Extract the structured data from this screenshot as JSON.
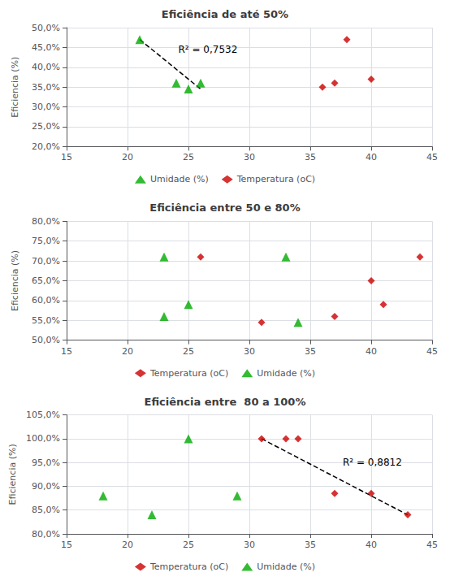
{
  "chart_data": [
    {
      "type": "scatter",
      "title": "Eficiência de até 50%",
      "ylabel": "Eficiencia (%)",
      "xlim": [
        15,
        45
      ],
      "ylim": [
        0.2,
        0.5
      ],
      "xticks": [
        15,
        20,
        25,
        30,
        35,
        40,
        45
      ],
      "yticks": [
        {
          "value": 0.2,
          "label": "20,0%"
        },
        {
          "value": 0.25,
          "label": "25,0%"
        },
        {
          "value": 0.3,
          "label": "30,0%"
        },
        {
          "value": 0.35,
          "label": "35,0%"
        },
        {
          "value": 0.4,
          "label": "40,0%"
        },
        {
          "value": 0.45,
          "label": "45,0%"
        },
        {
          "value": 0.5,
          "label": "50,0%"
        }
      ],
      "grid": true,
      "legend": "bottom",
      "series": [
        {
          "name": "Umidade (%)",
          "color": "#00AA00",
          "marker": "triangle",
          "x": [
            21,
            24,
            25,
            26
          ],
          "values": [
            0.47,
            0.36,
            0.345,
            0.36
          ]
        },
        {
          "name": "Temperatura (oC)",
          "color": "#CC0000",
          "marker": "diamond",
          "x": [
            36,
            37,
            38,
            40
          ],
          "values": [
            0.35,
            0.36,
            0.47,
            0.37
          ]
        },
        {
          "type": "line",
          "line_style": "dashed",
          "color": "#000000",
          "x": [
            21,
            26
          ],
          "values": [
            0.47,
            0.345
          ]
        }
      ],
      "annotation": "R² = 0,7532"
    },
    {
      "type": "scatter",
      "title": "Eficiência entre 50 e 80%",
      "ylabel": "Eficiencia (%)",
      "xlim": [
        15,
        45
      ],
      "ylim": [
        0.5,
        0.8
      ],
      "xticks": [
        15,
        20,
        25,
        30,
        35,
        40,
        45
      ],
      "yticks": [
        {
          "value": 0.5,
          "label": "50,0%"
        },
        {
          "value": 0.55,
          "label": "55,0%"
        },
        {
          "value": 0.6,
          "label": "60,0%"
        },
        {
          "value": 0.65,
          "label": "65,0%"
        },
        {
          "value": 0.7,
          "label": "70,0%"
        },
        {
          "value": 0.75,
          "label": "75,0%"
        },
        {
          "value": 0.8,
          "label": "80,0%"
        }
      ],
      "grid": true,
      "legend": "bottom",
      "series": [
        {
          "name": "Temperatura (oC)",
          "color": "#CC0000",
          "marker": "diamond",
          "x": [
            26,
            31,
            37,
            40,
            41,
            44
          ],
          "values": [
            0.71,
            0.545,
            0.56,
            0.65,
            0.59,
            0.71
          ]
        },
        {
          "name": "Umidade (%)",
          "color": "#00AA00",
          "marker": "triangle",
          "x": [
            23,
            23,
            25,
            33,
            34
          ],
          "values": [
            0.71,
            0.56,
            0.59,
            0.71,
            0.545
          ]
        }
      ]
    },
    {
      "type": "scatter",
      "title": "Eficiência entre  80 a 100%",
      "ylabel": "Eficiencia (%)",
      "xlim": [
        15,
        45
      ],
      "ylim": [
        0.8,
        1.05
      ],
      "xticks": [
        15,
        20,
        25,
        30,
        35,
        40,
        45
      ],
      "yticks": [
        {
          "value": 0.8,
          "label": "80,0%"
        },
        {
          "value": 0.85,
          "label": "85,0%"
        },
        {
          "value": 0.9,
          "label": "90,0%"
        },
        {
          "value": 0.95,
          "label": "95,0%"
        },
        {
          "value": 1.0,
          "label": "100,0%"
        },
        {
          "value": 1.05,
          "label": "105,0%"
        }
      ],
      "grid": true,
      "legend": "bottom",
      "series": [
        {
          "name": "Temperatura (oC)",
          "color": "#CC0000",
          "marker": "diamond",
          "x": [
            31,
            33,
            34,
            37,
            40,
            43
          ],
          "values": [
            1.0,
            1.0,
            1.0,
            0.885,
            0.885,
            0.84
          ]
        },
        {
          "name": "Umidade (%)",
          "color": "#00AA00",
          "marker": "triangle",
          "x": [
            18,
            22,
            25,
            29
          ],
          "values": [
            0.88,
            0.84,
            1.0,
            0.88
          ]
        },
        {
          "type": "line",
          "line_style": "dashed",
          "color": "#000000",
          "x": [
            31,
            43
          ],
          "values": [
            1.0,
            0.84
          ]
        }
      ],
      "annotation": "R² = 0,8812"
    }
  ]
}
